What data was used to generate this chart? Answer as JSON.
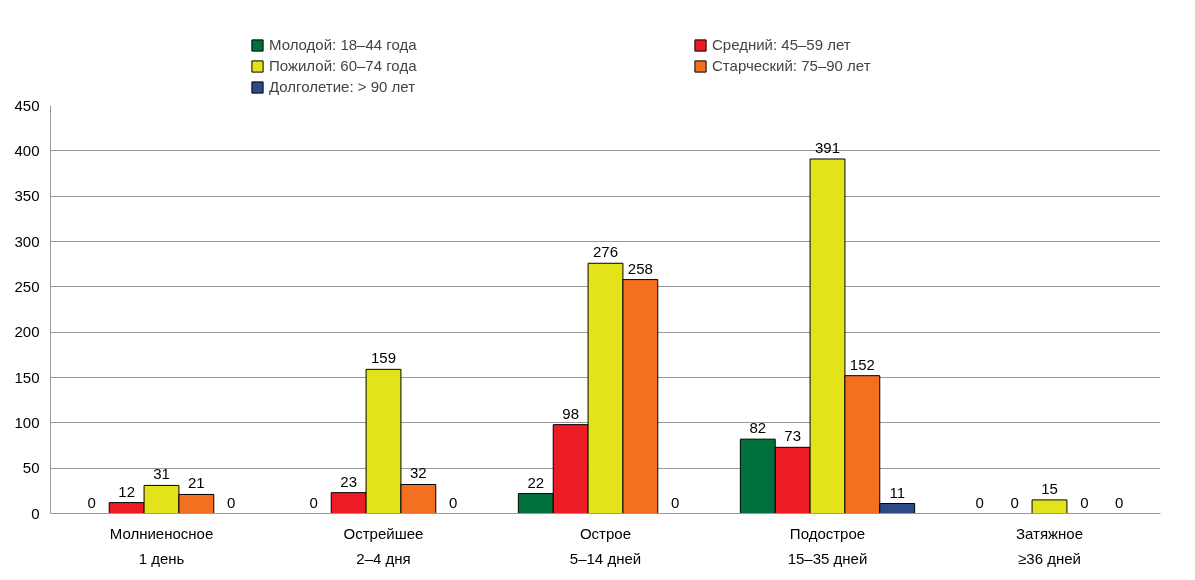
{
  "chart_data": {
    "type": "bar",
    "categories": [
      "Молниеносное\n1 день",
      "Острейшее\n2–4 дня",
      "Острое\n5–14 дней",
      "Подострое\n15–35 дней",
      "Затяжное\n≥36 дней"
    ],
    "series": [
      {
        "name": "Молодой: 18–44 года",
        "color": "#00703c",
        "values": [
          0,
          0,
          22,
          82,
          0
        ]
      },
      {
        "name": "Средний: 45–59 лет",
        "color": "#ed1c24",
        "values": [
          12,
          23,
          98,
          73,
          0
        ]
      },
      {
        "name": "Пожилой: 60–74 года",
        "color": "#e3e31b",
        "values": [
          31,
          159,
          276,
          391,
          15
        ]
      },
      {
        "name": "Старческий: 75–90 лет",
        "color": "#f37021",
        "values": [
          21,
          32,
          258,
          152,
          0
        ]
      },
      {
        "name": "Долголетие: > 90 лет",
        "color": "#2b4a86",
        "values": [
          0,
          0,
          0,
          11,
          0
        ]
      }
    ],
    "ylim": [
      0,
      450
    ],
    "yticks": [
      0,
      50,
      100,
      150,
      200,
      250,
      300,
      350,
      400,
      450
    ],
    "grid": "y",
    "legend": "top",
    "data_labels": true
  }
}
